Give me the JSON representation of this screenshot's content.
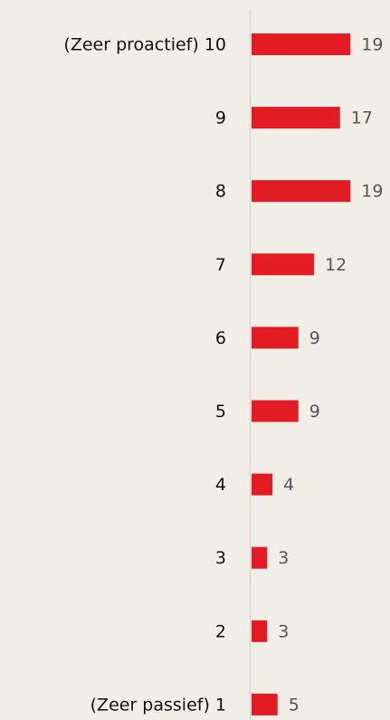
{
  "chart_data": {
    "type": "hbar",
    "categories": [
      "(Zeer proactief) 10",
      "9",
      "8",
      "7",
      "6",
      "5",
      "4",
      "3",
      "2",
      "(Zeer passief) 1"
    ],
    "values": [
      19,
      17,
      19,
      12,
      9,
      9,
      4,
      3,
      3,
      5
    ],
    "color": "#e31b23",
    "xlim": [
      0,
      20
    ]
  }
}
